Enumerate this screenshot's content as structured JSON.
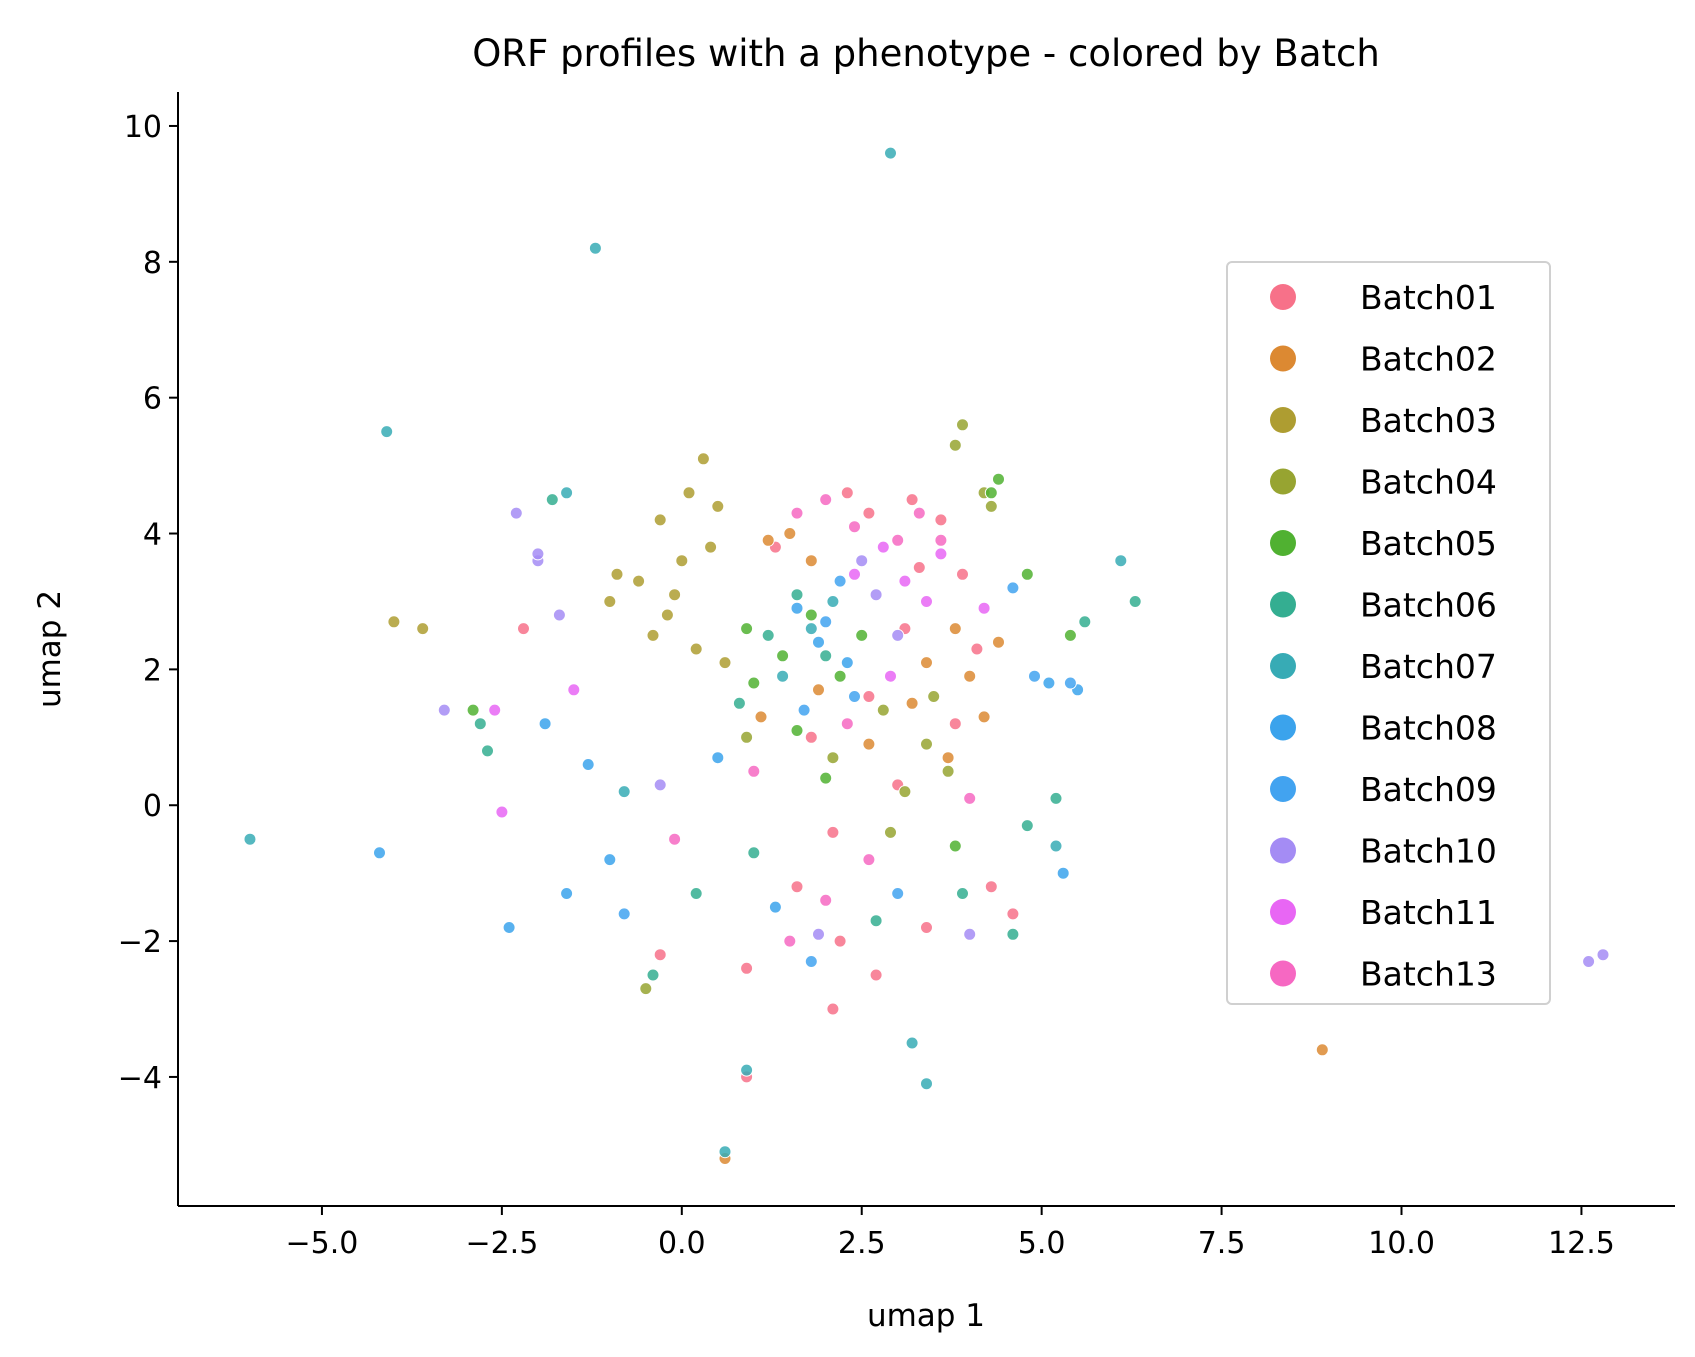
{
  "chart_data": {
    "type": "scatter",
    "title": "ORF profiles with a phenotype - colored by Batch",
    "xlabel": "umap 1",
    "ylabel": "umap 2",
    "xlim": [
      -7.0,
      13.8
    ],
    "ylim": [
      -5.9,
      10.5
    ],
    "xticks": [
      -5.0,
      -2.5,
      0.0,
      2.5,
      5.0,
      7.5,
      10.0,
      12.5
    ],
    "xtick_labels": [
      "−5.0",
      "−2.5",
      "0.0",
      "2.5",
      "5.0",
      "7.5",
      "10.0",
      "12.5"
    ],
    "yticks": [
      -4,
      -2,
      0,
      2,
      4,
      6,
      8,
      10
    ],
    "ytick_labels": [
      "−4",
      "−2",
      "0",
      "2",
      "4",
      "6",
      "8",
      "10"
    ],
    "grid": false,
    "legend_position": "right",
    "series": [
      {
        "name": "Batch01",
        "color": "#f77189",
        "points": [
          [
            2.6,
            4.3
          ],
          [
            3.2,
            4.5
          ],
          [
            3.6,
            4.2
          ],
          [
            3.9,
            3.4
          ],
          [
            4.1,
            2.3
          ],
          [
            3.8,
            1.2
          ],
          [
            3.0,
            0.3
          ],
          [
            2.1,
            -0.4
          ],
          [
            1.6,
            -1.2
          ],
          [
            2.2,
            -2.0
          ],
          [
            2.7,
            -2.5
          ],
          [
            2.1,
            -3.0
          ],
          [
            3.4,
            -1.8
          ],
          [
            4.3,
            -1.2
          ],
          [
            0.9,
            -2.4
          ],
          [
            0.9,
            -4.0
          ],
          [
            1.3,
            3.8
          ],
          [
            2.3,
            4.6
          ],
          [
            -2.2,
            2.6
          ],
          [
            -0.3,
            -2.2
          ],
          [
            4.6,
            -1.6
          ],
          [
            3.1,
            2.6
          ],
          [
            1.8,
            1.0
          ],
          [
            2.6,
            1.6
          ],
          [
            3.3,
            3.5
          ]
        ]
      },
      {
        "name": "Batch02",
        "color": "#dc8932",
        "points": [
          [
            1.2,
            3.9
          ],
          [
            1.5,
            4.0
          ],
          [
            1.8,
            3.6
          ],
          [
            3.8,
            2.6
          ],
          [
            4.0,
            1.9
          ],
          [
            4.2,
            1.3
          ],
          [
            3.7,
            0.7
          ],
          [
            3.4,
            2.1
          ],
          [
            8.9,
            -3.6
          ],
          [
            0.6,
            -5.2
          ],
          [
            1.1,
            1.3
          ],
          [
            1.9,
            1.7
          ],
          [
            2.6,
            0.9
          ],
          [
            3.2,
            1.5
          ],
          [
            4.4,
            2.4
          ]
        ]
      },
      {
        "name": "Batch03",
        "color": "#ae9d31",
        "points": [
          [
            0.1,
            4.6
          ],
          [
            0.3,
            5.1
          ],
          [
            -0.3,
            4.2
          ],
          [
            -0.6,
            3.3
          ],
          [
            -1.0,
            3.0
          ],
          [
            0.0,
            3.6
          ],
          [
            0.4,
            3.8
          ],
          [
            -0.2,
            2.8
          ],
          [
            0.2,
            2.3
          ],
          [
            -0.9,
            3.4
          ],
          [
            0.6,
            2.1
          ],
          [
            -0.4,
            2.5
          ],
          [
            -4.0,
            2.7
          ],
          [
            -3.6,
            2.6
          ],
          [
            0.5,
            4.4
          ],
          [
            -0.1,
            3.1
          ]
        ]
      },
      {
        "name": "Batch04",
        "color": "#97a431",
        "points": [
          [
            3.4,
            0.9
          ],
          [
            3.7,
            0.5
          ],
          [
            3.1,
            0.2
          ],
          [
            2.8,
            1.4
          ],
          [
            3.9,
            5.6
          ],
          [
            3.8,
            5.3
          ],
          [
            4.2,
            4.6
          ],
          [
            4.3,
            4.4
          ],
          [
            0.9,
            1.0
          ],
          [
            2.1,
            0.7
          ],
          [
            3.5,
            1.6
          ],
          [
            -0.5,
            -2.7
          ],
          [
            2.9,
            -0.4
          ]
        ]
      },
      {
        "name": "Batch05",
        "color": "#50b131",
        "points": [
          [
            1.4,
            2.2
          ],
          [
            1.8,
            2.8
          ],
          [
            2.2,
            1.9
          ],
          [
            1.0,
            1.8
          ],
          [
            2.5,
            2.5
          ],
          [
            4.3,
            4.6
          ],
          [
            4.4,
            4.8
          ],
          [
            0.9,
            2.6
          ],
          [
            1.6,
            1.1
          ],
          [
            2.0,
            0.4
          ],
          [
            4.8,
            3.4
          ],
          [
            5.4,
            2.5
          ],
          [
            -2.9,
            1.4
          ],
          [
            3.8,
            -0.6
          ]
        ]
      },
      {
        "name": "Batch06",
        "color": "#34ae91",
        "points": [
          [
            1.2,
            2.5
          ],
          [
            1.6,
            3.1
          ],
          [
            2.0,
            2.2
          ],
          [
            0.8,
            1.5
          ],
          [
            -2.8,
            1.2
          ],
          [
            -1.8,
            4.5
          ],
          [
            4.8,
            -0.3
          ],
          [
            4.6,
            -1.9
          ],
          [
            2.7,
            -1.7
          ],
          [
            1.0,
            -0.7
          ],
          [
            -0.4,
            -2.5
          ],
          [
            0.2,
            -1.3
          ],
          [
            5.2,
            0.1
          ],
          [
            3.9,
            -1.3
          ],
          [
            6.3,
            3.0
          ],
          [
            5.6,
            2.7
          ],
          [
            -2.7,
            0.8
          ]
        ]
      },
      {
        "name": "Batch07",
        "color": "#37abb5",
        "points": [
          [
            1.8,
            2.6
          ],
          [
            2.1,
            3.0
          ],
          [
            1.4,
            1.9
          ],
          [
            -4.1,
            5.5
          ],
          [
            -6.0,
            -0.5
          ],
          [
            3.2,
            -3.5
          ],
          [
            3.4,
            -4.1
          ],
          [
            0.6,
            -5.1
          ],
          [
            0.9,
            -3.9
          ],
          [
            -1.2,
            8.2
          ],
          [
            2.9,
            9.6
          ],
          [
            6.1,
            3.6
          ],
          [
            -1.6,
            4.6
          ],
          [
            5.2,
            -0.6
          ],
          [
            -0.8,
            0.2
          ]
        ]
      },
      {
        "name": "Batch08",
        "color": "#3ba3ec",
        "points": [
          [
            1.9,
            2.4
          ],
          [
            2.3,
            2.1
          ],
          [
            1.6,
            2.9
          ],
          [
            -4.2,
            -0.7
          ],
          [
            -2.4,
            -1.8
          ],
          [
            -1.6,
            -1.3
          ],
          [
            -1.0,
            -0.8
          ],
          [
            -1.9,
            1.2
          ],
          [
            -1.3,
            0.6
          ],
          [
            5.1,
            1.8
          ],
          [
            5.5,
            1.7
          ],
          [
            5.3,
            -1.0
          ],
          [
            1.3,
            -1.5
          ],
          [
            0.5,
            0.7
          ]
        ]
      },
      {
        "name": "Batch09",
        "color": "#42a3f0",
        "points": [
          [
            2.0,
            2.7
          ],
          [
            2.4,
            1.6
          ],
          [
            1.7,
            1.4
          ],
          [
            4.9,
            1.9
          ],
          [
            5.4,
            1.8
          ],
          [
            2.2,
            3.3
          ],
          [
            -0.8,
            -1.6
          ],
          [
            1.8,
            -2.3
          ],
          [
            3.0,
            -1.3
          ],
          [
            4.6,
            3.2
          ]
        ]
      },
      {
        "name": "Batch10",
        "color": "#a48cf4",
        "points": [
          [
            2.7,
            3.1
          ],
          [
            3.0,
            2.5
          ],
          [
            2.5,
            3.6
          ],
          [
            12.8,
            -2.2
          ],
          [
            12.6,
            -2.3
          ],
          [
            -2.3,
            4.3
          ],
          [
            -2.0,
            3.6
          ],
          [
            -2.0,
            3.7
          ],
          [
            -1.7,
            2.8
          ],
          [
            -3.3,
            1.4
          ],
          [
            -0.3,
            0.3
          ],
          [
            4.0,
            -1.9
          ],
          [
            1.9,
            -1.9
          ]
        ]
      },
      {
        "name": "Batch11",
        "color": "#e866f4",
        "points": [
          [
            2.8,
            3.8
          ],
          [
            3.1,
            3.3
          ],
          [
            3.4,
            3.0
          ],
          [
            2.4,
            3.4
          ],
          [
            3.6,
            3.7
          ],
          [
            -2.6,
            1.4
          ],
          [
            -1.5,
            1.7
          ],
          [
            -2.5,
            -0.1
          ],
          [
            4.2,
            2.9
          ],
          [
            2.9,
            1.9
          ]
        ]
      },
      {
        "name": "Batch13",
        "color": "#f668c2",
        "points": [
          [
            3.3,
            4.3
          ],
          [
            3.6,
            3.9
          ],
          [
            3.0,
            3.9
          ],
          [
            2.4,
            4.1
          ],
          [
            1.6,
            4.3
          ],
          [
            2.0,
            4.5
          ],
          [
            2.6,
            -0.8
          ],
          [
            2.0,
            -1.4
          ],
          [
            1.5,
            -2.0
          ],
          [
            -0.1,
            -0.5
          ],
          [
            4.0,
            0.1
          ],
          [
            1.0,
            0.5
          ],
          [
            2.3,
            1.2
          ]
        ]
      }
    ]
  }
}
